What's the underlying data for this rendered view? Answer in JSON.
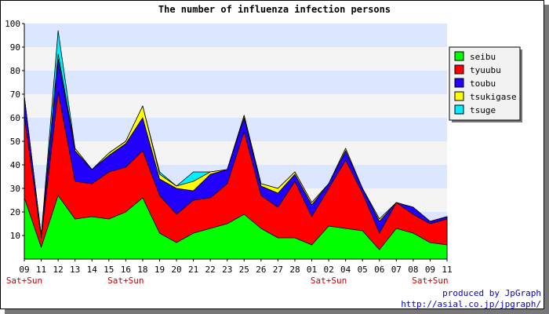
{
  "chart_data": {
    "type": "area",
    "stacked": true,
    "title": "The number of influenza infection persons",
    "categories": [
      "09",
      "11",
      "12",
      "13",
      "14",
      "15",
      "16",
      "18",
      "19",
      "20",
      "21",
      "22",
      "23",
      "25",
      "26",
      "27",
      "28",
      "01",
      "02",
      "04",
      "05",
      "06",
      "07",
      "08",
      "09",
      "11"
    ],
    "weekend_labels": [
      "Sat+Sun",
      "",
      "",
      "",
      "",
      "",
      "Sat+Sun",
      "",
      "",
      "",
      "",
      "",
      "",
      "",
      "",
      "",
      "",
      "",
      "Sat+Sun",
      "",
      "",
      "",
      "",
      "",
      "Sat+Sun",
      ""
    ],
    "ylim": [
      0,
      100
    ],
    "yticks": [
      10,
      20,
      30,
      40,
      50,
      60,
      70,
      80,
      90,
      100
    ],
    "grid_bands": [
      "#dde6ff",
      "#f4f4f4"
    ],
    "legend_position": "right",
    "series": [
      {
        "name": "seibu",
        "color": "#00ff00",
        "values": [
          26,
          5,
          27,
          17,
          18,
          17,
          20,
          26,
          11,
          7,
          11,
          13,
          15,
          19,
          13,
          9,
          9,
          6,
          14,
          13,
          12,
          4,
          13,
          11,
          7,
          6
        ]
      },
      {
        "name": "tyuubu",
        "color": "#ff0000",
        "values": [
          35,
          4,
          44,
          16,
          14,
          20,
          19,
          20,
          16,
          12,
          14,
          13,
          17,
          35,
          14,
          13,
          24,
          12,
          16,
          29,
          16,
          7,
          11,
          8,
          8,
          11
        ]
      },
      {
        "name": "toubu",
        "color": "#2200ff",
        "values": [
          8,
          1,
          14,
          13,
          6,
          7,
          10,
          14,
          7,
          11,
          4,
          10,
          6,
          6,
          4,
          6,
          3,
          5,
          2,
          4,
          2,
          5,
          0,
          3,
          1,
          1
        ]
      },
      {
        "name": "tsukigase",
        "color": "#ffff00",
        "values": [
          0,
          0,
          2,
          1,
          0,
          1,
          1,
          5,
          2,
          1,
          4,
          1,
          0,
          1,
          1,
          2,
          1,
          1,
          0,
          1,
          0,
          1,
          0,
          0,
          0,
          0
        ]
      },
      {
        "name": "tsuge",
        "color": "#00eeff",
        "values": [
          0,
          0,
          10,
          0,
          0,
          0,
          0,
          0,
          1,
          0,
          4,
          0,
          0,
          0,
          0,
          0,
          0,
          0,
          0,
          0,
          0,
          0,
          0,
          0,
          0,
          0
        ]
      }
    ]
  },
  "credit": {
    "line1": "produced by JpGraph",
    "line2": "http://asial.co.jp/jpgraph/"
  }
}
